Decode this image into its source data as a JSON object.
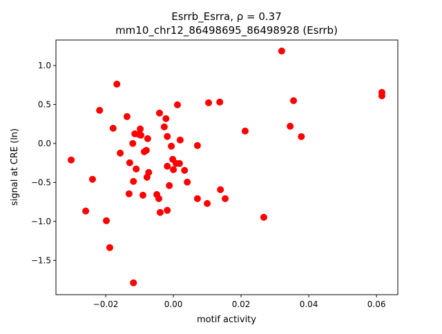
{
  "chart_data": {
    "type": "scatter",
    "title_line1": "Esrrb_Esrra, ρ = 0.37",
    "title_line2": "mm10_chr12_86498695_86498928 (Esrrb)",
    "xlabel": "motif activity",
    "ylabel": "signal at CRE (ln)",
    "xlim": [
      -0.0347,
      0.0663
    ],
    "ylim": [
      -1.94,
      1.327
    ],
    "xticks": [
      -0.02,
      0.0,
      0.02,
      0.04,
      0.06
    ],
    "xtick_labels": [
      "−0.02",
      "0.00",
      "0.02",
      "0.04",
      "0.06"
    ],
    "yticks": [
      1.0,
      0.5,
      0.0,
      -0.5,
      -1.0,
      -1.5
    ],
    "ytick_labels": [
      "1.0",
      "0.5",
      "0.0",
      "−0.5",
      "−1.0",
      "−1.5"
    ],
    "grid": false,
    "marker_color": "#ff0000",
    "points": [
      [
        -0.0302,
        -0.212
      ],
      [
        -0.0239,
        -0.46
      ],
      [
        -0.0259,
        -0.867
      ],
      [
        -0.0198,
        -0.991
      ],
      [
        -0.0188,
        -1.336
      ],
      [
        -0.0118,
        -1.788
      ],
      [
        -0.0218,
        0.425
      ],
      [
        -0.0167,
        0.761
      ],
      [
        -0.0178,
        0.195
      ],
      [
        -0.0157,
        -0.124
      ],
      [
        -0.0137,
        0.345
      ],
      [
        -0.0129,
        -0.248
      ],
      [
        -0.012,
        0.0
      ],
      [
        -0.0114,
        0.124
      ],
      [
        -0.011,
        -0.327
      ],
      [
        -0.0102,
        0.115
      ],
      [
        -0.0098,
        0.186
      ],
      [
        -0.0096,
        0.106
      ],
      [
        -0.009,
        -0.664
      ],
      [
        -0.0086,
        -0.106
      ],
      [
        -0.008,
        -0.088
      ],
      [
        -0.0076,
        0.062
      ],
      [
        -0.0078,
        -0.434
      ],
      [
        -0.0073,
        -0.372
      ],
      [
        -0.0131,
        -0.646
      ],
      [
        -0.0118,
        -0.487
      ],
      [
        -0.0049,
        -0.655
      ],
      [
        -0.0043,
        -0.708
      ],
      [
        -0.0041,
        0.39
      ],
      [
        -0.0027,
        0.212
      ],
      [
        -0.0022,
        0.319
      ],
      [
        -0.0018,
        -0.292
      ],
      [
        -0.0018,
        0.09
      ],
      [
        -0.0012,
        -0.54
      ],
      [
        -0.0018,
        -0.858
      ],
      [
        -0.0006,
        -0.035
      ],
      [
        -0.0002,
        -0.204
      ],
      [
        0.0,
        -0.336
      ],
      [
        0.0008,
        -0.257
      ],
      [
        0.0012,
        0.496
      ],
      [
        0.002,
        0.044
      ],
      [
        0.0018,
        -0.257
      ],
      [
        0.0033,
        -0.345
      ],
      [
        0.0041,
        -0.496
      ],
      [
        -0.0039,
        -0.885
      ],
      [
        0.0071,
        -0.027
      ],
      [
        0.0071,
        -0.708
      ],
      [
        0.01,
        -0.77
      ],
      [
        0.0104,
        0.522
      ],
      [
        0.0137,
        0.531
      ],
      [
        0.0139,
        -0.593
      ],
      [
        0.0153,
        -0.708
      ],
      [
        0.0212,
        0.159
      ],
      [
        0.0267,
        -0.947
      ],
      [
        0.032,
        1.186
      ],
      [
        0.0345,
        0.221
      ],
      [
        0.0355,
        0.549
      ],
      [
        0.0378,
        0.088
      ],
      [
        0.0616,
        0.655
      ],
      [
        0.0616,
        0.611
      ]
    ]
  }
}
